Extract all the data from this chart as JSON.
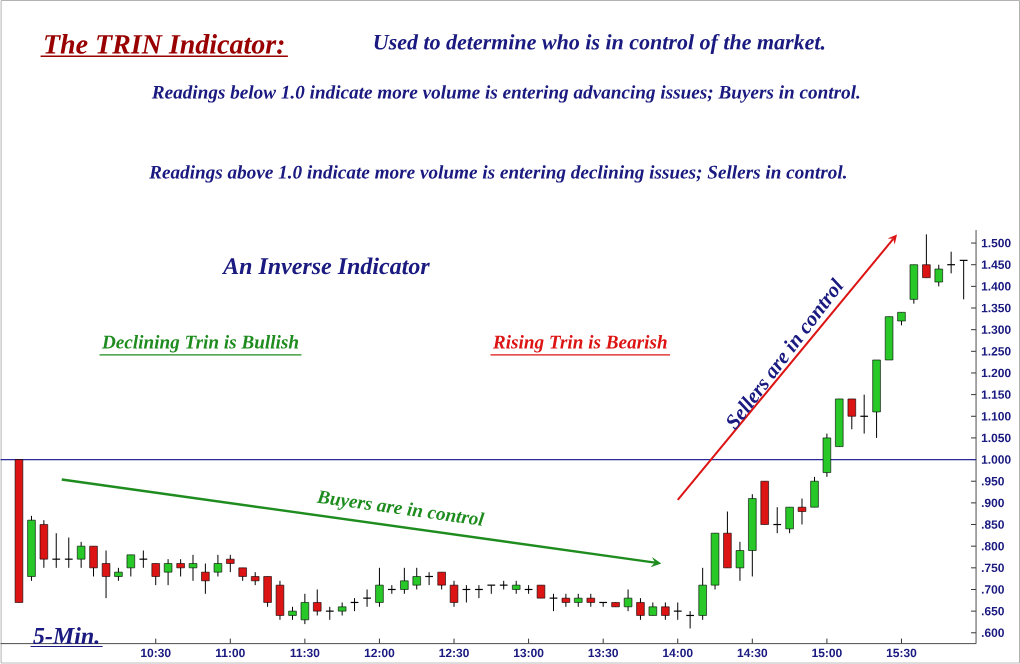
{
  "chart_data": {
    "type": "candlestick",
    "title": "The TRIN Indicator:",
    "subtitle": "Used to determine who is in control of the market.",
    "annotations": [
      "Readings below 1.0 indicate more volume is entering advancing issues; Buyers in control.",
      "Readings above 1.0 indicate more volume is entering declining issues; Sellers in control.",
      "An Inverse Indicator",
      "Declining Trin is Bullish",
      "Rising Trin is Bearish",
      "Buyers are in control",
      "Sellers are in control",
      "5-Min."
    ],
    "x": [
      9.583,
      9.667,
      9.75,
      9.833,
      9.917,
      10,
      10.083,
      10.167,
      10.25,
      10.333,
      10.417,
      10.5,
      10.583,
      10.667,
      10.75,
      10.833,
      10.917,
      11,
      11.083,
      11.167,
      11.25,
      11.333,
      11.417,
      11.5,
      11.583,
      11.667,
      11.75,
      11.833,
      11.917,
      12,
      12.083,
      12.167,
      12.25,
      12.333,
      12.417,
      12.5,
      12.583,
      12.667,
      12.75,
      12.833,
      12.917,
      13,
      13.083,
      13.167,
      13.25,
      13.333,
      13.417,
      13.5,
      13.583,
      13.667,
      13.75,
      13.833,
      13.917,
      14,
      14.083,
      14.167,
      14.25,
      14.333,
      14.417,
      14.5,
      14.583,
      14.667,
      14.75,
      14.833,
      14.917,
      15,
      15.083,
      15.167,
      15.25,
      15.333,
      15.417,
      15.5,
      15.583,
      15.667,
      15.75,
      15.833,
      15.917
    ],
    "ohlc": [
      [
        1.0,
        1.0,
        0.67,
        0.67
      ],
      [
        0.73,
        0.87,
        0.72,
        0.86
      ],
      [
        0.85,
        0.86,
        0.75,
        0.77
      ],
      [
        0.77,
        0.83,
        0.75,
        0.77
      ],
      [
        0.77,
        0.82,
        0.75,
        0.77
      ],
      [
        0.77,
        0.81,
        0.75,
        0.8
      ],
      [
        0.8,
        0.8,
        0.73,
        0.75
      ],
      [
        0.76,
        0.79,
        0.68,
        0.73
      ],
      [
        0.73,
        0.75,
        0.72,
        0.74
      ],
      [
        0.75,
        0.78,
        0.73,
        0.78
      ],
      [
        0.77,
        0.79,
        0.75,
        0.77
      ],
      [
        0.76,
        0.76,
        0.71,
        0.73
      ],
      [
        0.74,
        0.77,
        0.71,
        0.76
      ],
      [
        0.76,
        0.77,
        0.73,
        0.75
      ],
      [
        0.75,
        0.78,
        0.72,
        0.76
      ],
      [
        0.74,
        0.76,
        0.69,
        0.72
      ],
      [
        0.74,
        0.78,
        0.73,
        0.76
      ],
      [
        0.77,
        0.78,
        0.74,
        0.76
      ],
      [
        0.75,
        0.75,
        0.72,
        0.73
      ],
      [
        0.73,
        0.74,
        0.71,
        0.72
      ],
      [
        0.73,
        0.73,
        0.66,
        0.67
      ],
      [
        0.71,
        0.72,
        0.63,
        0.64
      ],
      [
        0.64,
        0.66,
        0.63,
        0.65
      ],
      [
        0.63,
        0.69,
        0.62,
        0.67
      ],
      [
        0.67,
        0.7,
        0.64,
        0.65
      ],
      [
        0.65,
        0.66,
        0.63,
        0.65
      ],
      [
        0.65,
        0.67,
        0.64,
        0.66
      ],
      [
        0.67,
        0.68,
        0.65,
        0.67
      ],
      [
        0.68,
        0.7,
        0.66,
        0.68
      ],
      [
        0.67,
        0.75,
        0.66,
        0.71
      ],
      [
        0.7,
        0.71,
        0.69,
        0.7
      ],
      [
        0.7,
        0.75,
        0.69,
        0.72
      ],
      [
        0.71,
        0.75,
        0.7,
        0.73
      ],
      [
        0.73,
        0.74,
        0.71,
        0.73
      ],
      [
        0.74,
        0.74,
        0.7,
        0.71
      ],
      [
        0.71,
        0.72,
        0.66,
        0.67
      ],
      [
        0.7,
        0.71,
        0.67,
        0.7
      ],
      [
        0.7,
        0.71,
        0.68,
        0.7
      ],
      [
        0.71,
        0.71,
        0.69,
        0.71
      ],
      [
        0.71,
        0.72,
        0.7,
        0.71
      ],
      [
        0.7,
        0.72,
        0.69,
        0.71
      ],
      [
        0.7,
        0.71,
        0.69,
        0.7
      ],
      [
        0.71,
        0.71,
        0.68,
        0.68
      ],
      [
        0.68,
        0.69,
        0.65,
        0.68
      ],
      [
        0.68,
        0.69,
        0.66,
        0.67
      ],
      [
        0.67,
        0.69,
        0.66,
        0.68
      ],
      [
        0.68,
        0.69,
        0.66,
        0.67
      ],
      [
        0.67,
        0.67,
        0.66,
        0.67
      ],
      [
        0.67,
        0.67,
        0.66,
        0.66
      ],
      [
        0.66,
        0.7,
        0.65,
        0.68
      ],
      [
        0.67,
        0.68,
        0.63,
        0.64
      ],
      [
        0.64,
        0.67,
        0.64,
        0.66
      ],
      [
        0.66,
        0.67,
        0.63,
        0.64
      ],
      [
        0.65,
        0.67,
        0.63,
        0.65
      ],
      [
        0.64,
        0.65,
        0.61,
        0.64
      ],
      [
        0.64,
        0.75,
        0.63,
        0.71
      ],
      [
        0.71,
        0.83,
        0.7,
        0.83
      ],
      [
        0.83,
        0.88,
        0.75,
        0.75
      ],
      [
        0.75,
        0.81,
        0.72,
        0.79
      ],
      [
        0.79,
        0.92,
        0.73,
        0.91
      ],
      [
        0.95,
        0.95,
        0.85,
        0.85
      ],
      [
        0.85,
        0.89,
        0.83,
        0.85
      ],
      [
        0.84,
        0.89,
        0.83,
        0.89
      ],
      [
        0.89,
        0.91,
        0.85,
        0.88
      ],
      [
        0.89,
        0.96,
        0.89,
        0.95
      ],
      [
        0.97,
        1.06,
        0.96,
        1.05
      ],
      [
        1.03,
        1.14,
        1.03,
        1.14
      ],
      [
        1.14,
        1.14,
        1.07,
        1.1
      ],
      [
        1.1,
        1.15,
        1.06,
        1.1
      ],
      [
        1.11,
        1.23,
        1.05,
        1.23
      ],
      [
        1.23,
        1.33,
        1.23,
        1.33
      ],
      [
        1.32,
        1.34,
        1.31,
        1.34
      ],
      [
        1.37,
        1.45,
        1.36,
        1.45
      ],
      [
        1.45,
        1.52,
        1.42,
        1.42
      ],
      [
        1.41,
        1.45,
        1.4,
        1.44
      ],
      [
        1.45,
        1.48,
        1.43,
        1.45
      ],
      [
        1.46,
        1.46,
        1.37,
        1.46
      ]
    ],
    "xlim": [
      9.46,
      16.0
    ],
    "ylim": [
      0.575,
      1.53
    ],
    "xticks": [
      {
        "value": 10.5,
        "label": "10:30"
      },
      {
        "value": 11,
        "label": "11:00"
      },
      {
        "value": 11.5,
        "label": "11:30"
      },
      {
        "value": 12,
        "label": "12:00"
      },
      {
        "value": 12.5,
        "label": "12:30"
      },
      {
        "value": 13,
        "label": "13:00"
      },
      {
        "value": 13.5,
        "label": "13:30"
      },
      {
        "value": 14,
        "label": "14:00"
      },
      {
        "value": 14.5,
        "label": "14:30"
      },
      {
        "value": 15,
        "label": "15:00"
      },
      {
        "value": 15.5,
        "label": "15:30"
      }
    ],
    "yticks": [
      {
        "value": 0.6,
        "label": ".600"
      },
      {
        "value": 0.65,
        "label": ".650"
      },
      {
        "value": 0.7,
        "label": ".700"
      },
      {
        "value": 0.75,
        "label": ".750"
      },
      {
        "value": 0.8,
        "label": ".800"
      },
      {
        "value": 0.85,
        "label": ".850"
      },
      {
        "value": 0.9,
        "label": ".900"
      },
      {
        "value": 0.95,
        "label": ".950"
      },
      {
        "value": 1.0,
        "label": "1.000"
      },
      {
        "value": 1.05,
        "label": "1.050"
      },
      {
        "value": 1.1,
        "label": "1.100"
      },
      {
        "value": 1.15,
        "label": "1.150"
      },
      {
        "value": 1.2,
        "label": "1.200"
      },
      {
        "value": 1.25,
        "label": "1.250"
      },
      {
        "value": 1.3,
        "label": "1.300"
      },
      {
        "value": 1.35,
        "label": "1.350"
      },
      {
        "value": 1.4,
        "label": "1.400"
      },
      {
        "value": 1.45,
        "label": "1.450"
      },
      {
        "value": 1.5,
        "label": "1.500"
      }
    ],
    "ref_lines": [
      {
        "axis": "y",
        "value": 1.0,
        "color": "#2a2a9a"
      }
    ]
  }
}
